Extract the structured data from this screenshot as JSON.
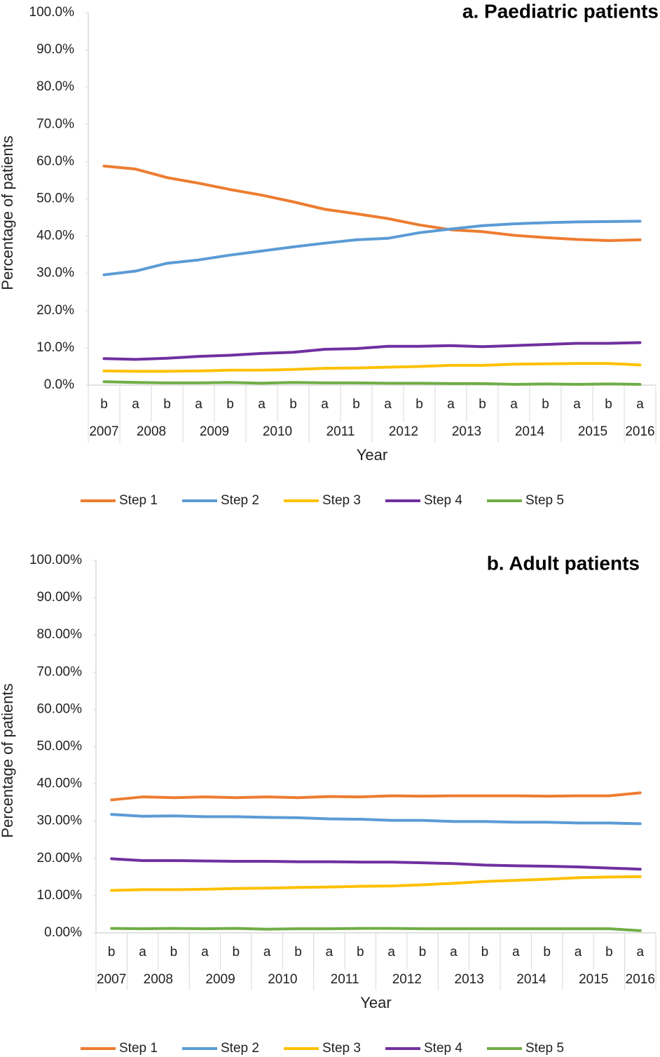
{
  "chart_data": [
    {
      "type": "line",
      "title": "a. Paediatric patients",
      "y_label": "Percentage of patients",
      "x_label": "Year",
      "categories": [
        "b",
        "a",
        "b",
        "a",
        "b",
        "a",
        "b",
        "a",
        "b",
        "a",
        "b",
        "a",
        "b",
        "a",
        "b",
        "a",
        "b",
        "a"
      ],
      "category_groups": [
        {
          "label": "2007",
          "count": 1
        },
        {
          "label": "2008",
          "count": 2
        },
        {
          "label": "2009",
          "count": 2
        },
        {
          "label": "2010",
          "count": 2
        },
        {
          "label": "2011",
          "count": 2
        },
        {
          "label": "2012",
          "count": 2
        },
        {
          "label": "2013",
          "count": 2
        },
        {
          "label": "2014",
          "count": 2
        },
        {
          "label": "2015",
          "count": 2
        },
        {
          "label": "2016",
          "count": 1
        }
      ],
      "ylim": [
        0,
        100
      ],
      "yticks": [
        {
          "value": 0,
          "label": "0.0%"
        },
        {
          "value": 10,
          "label": "10.0%"
        },
        {
          "value": 20,
          "label": "20.0%"
        },
        {
          "value": 30,
          "label": "30.0%"
        },
        {
          "value": 40,
          "label": "40.0%"
        },
        {
          "value": 50,
          "label": "50.0%"
        },
        {
          "value": 60,
          "label": "60.0%"
        },
        {
          "value": 70,
          "label": "70.0%"
        },
        {
          "value": 80,
          "label": "80.0%"
        },
        {
          "value": 90,
          "label": "90.0%"
        },
        {
          "value": 100,
          "label": "100.0%"
        }
      ],
      "grid": false,
      "legend": "bottom",
      "series": [
        {
          "name": "Step 1",
          "color": "#ed7d31",
          "values": [
            58.8,
            58.0,
            55.7,
            54.2,
            52.5,
            51.0,
            49.2,
            47.2,
            46.0,
            44.7,
            43.0,
            41.7,
            41.2,
            40.2,
            39.6,
            39.1,
            38.8,
            39.0
          ]
        },
        {
          "name": "Step 2",
          "color": "#5b9bd5",
          "values": [
            29.6,
            30.6,
            32.7,
            33.6,
            34.9,
            36.0,
            37.1,
            38.1,
            39.0,
            39.4,
            40.9,
            41.9,
            42.8,
            43.3,
            43.6,
            43.8,
            43.9,
            44.0
          ]
        },
        {
          "name": "Step 3",
          "color": "#ffc000",
          "values": [
            3.8,
            3.7,
            3.7,
            3.8,
            4.0,
            4.0,
            4.2,
            4.5,
            4.6,
            4.8,
            5.0,
            5.3,
            5.3,
            5.6,
            5.7,
            5.8,
            5.8,
            5.4
          ]
        },
        {
          "name": "Step 4",
          "color": "#7030a0",
          "values": [
            7.1,
            6.9,
            7.2,
            7.7,
            8.0,
            8.5,
            8.8,
            9.6,
            9.8,
            10.4,
            10.4,
            10.6,
            10.3,
            10.6,
            10.9,
            11.2,
            11.2,
            11.4
          ]
        },
        {
          "name": "Step 5",
          "color": "#70ad47",
          "values": [
            0.9,
            0.7,
            0.6,
            0.6,
            0.7,
            0.5,
            0.7,
            0.6,
            0.6,
            0.5,
            0.5,
            0.4,
            0.4,
            0.2,
            0.3,
            0.2,
            0.3,
            0.2
          ]
        }
      ]
    },
    {
      "type": "line",
      "title": "b. Adult patients",
      "y_label": "Percentage of patients",
      "x_label": "Year",
      "categories": [
        "b",
        "a",
        "b",
        "a",
        "b",
        "a",
        "b",
        "a",
        "b",
        "a",
        "b",
        "a",
        "b",
        "a",
        "b",
        "a",
        "b",
        "a"
      ],
      "category_groups": [
        {
          "label": "2007",
          "count": 1
        },
        {
          "label": "2008",
          "count": 2
        },
        {
          "label": "2009",
          "count": 2
        },
        {
          "label": "2010",
          "count": 2
        },
        {
          "label": "2011",
          "count": 2
        },
        {
          "label": "2012",
          "count": 2
        },
        {
          "label": "2013",
          "count": 2
        },
        {
          "label": "2014",
          "count": 2
        },
        {
          "label": "2015",
          "count": 2
        },
        {
          "label": "2016",
          "count": 1
        }
      ],
      "ylim": [
        0,
        100
      ],
      "yticks": [
        {
          "value": 0,
          "label": "0.00%"
        },
        {
          "value": 10,
          "label": "10.00%"
        },
        {
          "value": 20,
          "label": "20.00%"
        },
        {
          "value": 30,
          "label": "30.00%"
        },
        {
          "value": 40,
          "label": "40.00%"
        },
        {
          "value": 50,
          "label": "50.00%"
        },
        {
          "value": 60,
          "label": "60.00%"
        },
        {
          "value": 70,
          "label": "70.00%"
        },
        {
          "value": 80,
          "label": "80.00%"
        },
        {
          "value": 90,
          "label": "90.00%"
        },
        {
          "value": 100,
          "label": "100.00%"
        }
      ],
      "grid": false,
      "legend": "bottom",
      "series": [
        {
          "name": "Step 1",
          "color": "#ed7d31",
          "values": [
            35.7,
            36.5,
            36.3,
            36.5,
            36.3,
            36.5,
            36.3,
            36.6,
            36.5,
            36.8,
            36.7,
            36.8,
            36.8,
            36.8,
            36.7,
            36.8,
            36.8,
            37.6
          ]
        },
        {
          "name": "Step 2",
          "color": "#5b9bd5",
          "values": [
            31.8,
            31.3,
            31.4,
            31.2,
            31.2,
            31.0,
            30.9,
            30.6,
            30.5,
            30.2,
            30.2,
            29.9,
            29.9,
            29.7,
            29.7,
            29.5,
            29.5,
            29.3
          ]
        },
        {
          "name": "Step 3",
          "color": "#ffc000",
          "values": [
            11.4,
            11.6,
            11.6,
            11.7,
            11.9,
            12.0,
            12.2,
            12.3,
            12.5,
            12.6,
            12.9,
            13.3,
            13.8,
            14.1,
            14.4,
            14.8,
            15.0,
            15.1
          ]
        },
        {
          "name": "Step 4",
          "color": "#7030a0",
          "values": [
            19.9,
            19.4,
            19.4,
            19.3,
            19.2,
            19.2,
            19.1,
            19.1,
            19.0,
            19.0,
            18.8,
            18.6,
            18.2,
            18.0,
            17.9,
            17.7,
            17.4,
            17.1
          ]
        },
        {
          "name": "Step 5",
          "color": "#70ad47",
          "values": [
            1.2,
            1.1,
            1.2,
            1.1,
            1.2,
            1.0,
            1.1,
            1.1,
            1.2,
            1.2,
            1.1,
            1.1,
            1.1,
            1.1,
            1.1,
            1.1,
            1.1,
            0.6
          ]
        }
      ]
    }
  ]
}
